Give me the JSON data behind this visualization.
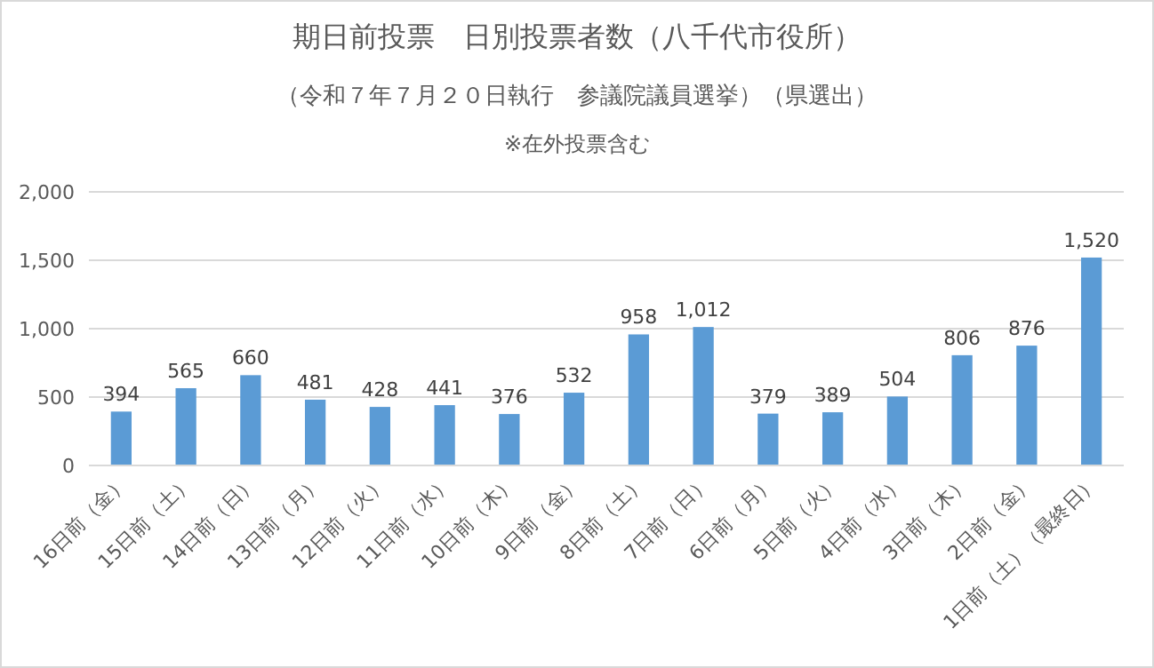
{
  "chart_data": {
    "type": "bar",
    "title": "期日前投票　日別投票者数（八千代市役所）",
    "subtitle": "（令和７年７月２０日執行　参議院議員選挙）（県選出）",
    "annotations": [
      "※在外投票含む"
    ],
    "categories": [
      "16日前（金）",
      "15日前（土）",
      "14日前（日）",
      "13日前（月）",
      "12日前（火）",
      "11日前（水）",
      "10日前（木）",
      "9日前（金）",
      "8日前（土）",
      "7日前（日）",
      "6日前（月）",
      "5日前（火）",
      "4日前（水）",
      "3日前（木）",
      "2日前（金）",
      "1日前（土）（最終日）"
    ],
    "values": [
      394,
      565,
      660,
      481,
      428,
      441,
      376,
      532,
      958,
      1012,
      379,
      389,
      504,
      806,
      876,
      1520
    ],
    "value_labels": [
      "394",
      "565",
      "660",
      "481",
      "428",
      "441",
      "376",
      "532",
      "958",
      "1,012",
      "379",
      "389",
      "504",
      "806",
      "876",
      "1,520"
    ],
    "color": "#5b9bd5",
    "ylim": [
      0,
      2000
    ],
    "yticks": [
      0,
      500,
      {
        "value": 1000,
        "label": "1,000"
      },
      {
        "value": 1500,
        "label": "1,500"
      },
      {
        "value": 2000,
        "label": "2,000"
      }
    ],
    "grid": "y"
  }
}
